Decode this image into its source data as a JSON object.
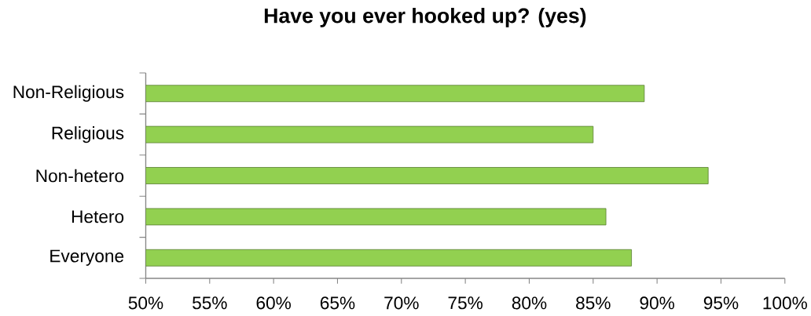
{
  "chart_data": {
    "type": "bar",
    "orientation": "horizontal",
    "title": "Have you ever hooked up? (yes)",
    "categories": [
      "Non-Religious",
      "Religious",
      "Non-hetero",
      "Hetero",
      "Everyone"
    ],
    "values": [
      89,
      85,
      94,
      86,
      88
    ],
    "color": "#92d050",
    "xlim": [
      50,
      100
    ],
    "xticks": [
      {
        "value": 50,
        "label": "50%"
      },
      {
        "value": 55,
        "label": "55%"
      },
      {
        "value": 60,
        "label": "60%"
      },
      {
        "value": 65,
        "label": "65%"
      },
      {
        "value": 70,
        "label": "70%"
      },
      {
        "value": 75,
        "label": "75%"
      },
      {
        "value": 80,
        "label": "80%"
      },
      {
        "value": 85,
        "label": "85%"
      },
      {
        "value": 90,
        "label": "90%"
      },
      {
        "value": 95,
        "label": "95%"
      },
      {
        "value": 100,
        "label": "100%"
      }
    ]
  }
}
